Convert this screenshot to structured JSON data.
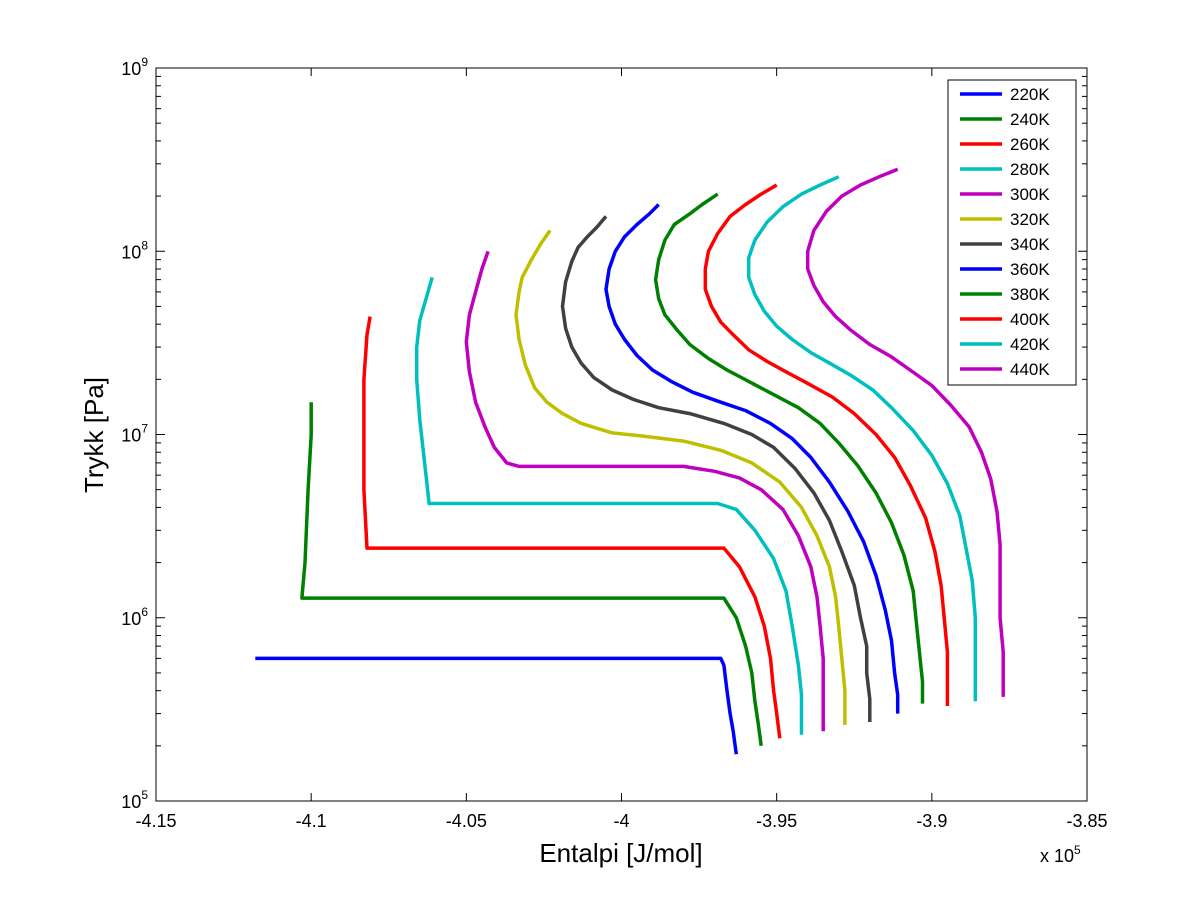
{
  "chart_data": {
    "type": "line",
    "xlabel": "Entalpi [J/mol]",
    "ylabel": "Trykk [Pa]",
    "x_multiplier_label": "x 10",
    "x_multiplier_exp": "5",
    "y_scale": "log",
    "xlim": [
      -4.15,
      -3.85
    ],
    "ylim": [
      100000,
      1000000000
    ],
    "x_ticks": [
      "-4.15",
      "-4.1",
      "-4.05",
      "-4",
      "-3.95",
      "-3.9",
      "-3.85"
    ],
    "y_ticks": [
      {
        "base": "10",
        "exp": "5"
      },
      {
        "base": "10",
        "exp": "6"
      },
      {
        "base": "10",
        "exp": "7"
      },
      {
        "base": "10",
        "exp": "8"
      },
      {
        "base": "10",
        "exp": "9"
      }
    ],
    "grid": false,
    "legend_position": "top-right",
    "series": [
      {
        "name": "220K",
        "color": "#0000ff",
        "points": [
          [
            -4.118,
            600000
          ],
          [
            -3.968,
            600000
          ],
          [
            -3.967,
            550000
          ],
          [
            -3.966,
            400000
          ],
          [
            -3.965,
            300000
          ],
          [
            -3.964,
            240000
          ],
          [
            -3.963,
            180000
          ]
        ]
      },
      {
        "name": "240K",
        "color": "#008000",
        "points": [
          [
            -4.1,
            15000000
          ],
          [
            -4.1,
            10000000
          ],
          [
            -4.101,
            5000000
          ],
          [
            -4.102,
            2000000
          ],
          [
            -4.103,
            1280000
          ],
          [
            -3.967,
            1280000
          ],
          [
            -3.963,
            1000000
          ],
          [
            -3.96,
            700000
          ],
          [
            -3.958,
            500000
          ],
          [
            -3.957,
            350000
          ],
          [
            -3.956,
            270000
          ],
          [
            -3.955,
            200000
          ]
        ]
      },
      {
        "name": "260K",
        "color": "#ff0000",
        "points": [
          [
            -4.081,
            44000000
          ],
          [
            -4.082,
            35000000
          ],
          [
            -4.083,
            20000000
          ],
          [
            -4.083,
            10000000
          ],
          [
            -4.083,
            5000000
          ],
          [
            -4.082,
            2400000
          ],
          [
            -3.967,
            2400000
          ],
          [
            -3.962,
            1900000
          ],
          [
            -3.957,
            1300000
          ],
          [
            -3.954,
            900000
          ],
          [
            -3.952,
            600000
          ],
          [
            -3.951,
            400000
          ],
          [
            -3.95,
            300000
          ],
          [
            -3.949,
            220000
          ]
        ]
      },
      {
        "name": "280K",
        "color": "#00bfbf",
        "points": [
          [
            -4.061,
            72000000
          ],
          [
            -4.063,
            55000000
          ],
          [
            -4.065,
            42000000
          ],
          [
            -4.066,
            30000000
          ],
          [
            -4.066,
            20000000
          ],
          [
            -4.065,
            12000000
          ],
          [
            -4.063,
            6000000
          ],
          [
            -4.062,
            4200000
          ],
          [
            -3.969,
            4200000
          ],
          [
            -3.963,
            3900000
          ],
          [
            -3.957,
            3000000
          ],
          [
            -3.951,
            2100000
          ],
          [
            -3.947,
            1400000
          ],
          [
            -3.945,
            900000
          ],
          [
            -3.943,
            550000
          ],
          [
            -3.942,
            380000
          ],
          [
            -3.942,
            300000
          ],
          [
            -3.942,
            230000
          ]
        ]
      },
      {
        "name": "300K",
        "color": "#bf00bf",
        "points": [
          [
            -4.043,
            100000000
          ],
          [
            -4.045,
            80000000
          ],
          [
            -4.047,
            60000000
          ],
          [
            -4.049,
            45000000
          ],
          [
            -4.05,
            32000000
          ],
          [
            -4.049,
            22000000
          ],
          [
            -4.047,
            15000000
          ],
          [
            -4.044,
            11000000
          ],
          [
            -4.041,
            8500000
          ],
          [
            -4.037,
            7000000
          ],
          [
            -4.033,
            6700000
          ],
          [
            -3.98,
            6700000
          ],
          [
            -3.97,
            6300000
          ],
          [
            -3.962,
            5800000
          ],
          [
            -3.955,
            5000000
          ],
          [
            -3.948,
            3900000
          ],
          [
            -3.943,
            2800000
          ],
          [
            -3.939,
            1900000
          ],
          [
            -3.937,
            1300000
          ],
          [
            -3.936,
            900000
          ],
          [
            -3.935,
            600000
          ],
          [
            -3.935,
            400000
          ],
          [
            -3.935,
            300000
          ],
          [
            -3.935,
            240000
          ]
        ]
      },
      {
        "name": "320K",
        "color": "#bfbf00",
        "points": [
          [
            -4.023,
            130000000
          ],
          [
            -4.026,
            110000000
          ],
          [
            -4.029,
            90000000
          ],
          [
            -4.032,
            72000000
          ],
          [
            -4.033,
            60000000
          ],
          [
            -4.034,
            45000000
          ],
          [
            -4.033,
            33000000
          ],
          [
            -4.031,
            24000000
          ],
          [
            -4.028,
            18000000
          ],
          [
            -4.024,
            15000000
          ],
          [
            -4.019,
            13000000
          ],
          [
            -4.013,
            11500000
          ],
          [
            -4.003,
            10200000
          ],
          [
            -3.993,
            9800000
          ],
          [
            -3.98,
            9200000
          ],
          [
            -3.968,
            8200000
          ],
          [
            -3.958,
            7000000
          ],
          [
            -3.949,
            5500000
          ],
          [
            -3.942,
            4000000
          ],
          [
            -3.937,
            2800000
          ],
          [
            -3.933,
            1900000
          ],
          [
            -3.931,
            1300000
          ],
          [
            -3.93,
            900000
          ],
          [
            -3.929,
            600000
          ],
          [
            -3.928,
            400000
          ],
          [
            -3.928,
            320000
          ],
          [
            -3.928,
            260000
          ]
        ]
      },
      {
        "name": "340K",
        "color": "#404040",
        "points": [
          [
            -4.005,
            155000000
          ],
          [
            -4.008,
            135000000
          ],
          [
            -4.011,
            120000000
          ],
          [
            -4.014,
            105000000
          ],
          [
            -4.016,
            88000000
          ],
          [
            -4.018,
            68000000
          ],
          [
            -4.019,
            50000000
          ],
          [
            -4.018,
            38000000
          ],
          [
            -4.016,
            30000000
          ],
          [
            -4.013,
            24500000
          ],
          [
            -4.009,
            20500000
          ],
          [
            -4.003,
            17500000
          ],
          [
            -3.996,
            15500000
          ],
          [
            -3.988,
            14000000
          ],
          [
            -3.978,
            13000000
          ],
          [
            -3.967,
            11500000
          ],
          [
            -3.958,
            10000000
          ],
          [
            -3.951,
            8500000
          ],
          [
            -3.944,
            6500000
          ],
          [
            -3.938,
            4800000
          ],
          [
            -3.933,
            3400000
          ],
          [
            -3.929,
            2300000
          ],
          [
            -3.925,
            1500000
          ],
          [
            -3.923,
            1000000
          ],
          [
            -3.921,
            700000
          ],
          [
            -3.921,
            500000
          ],
          [
            -3.92,
            360000
          ],
          [
            -3.92,
            270000
          ]
        ]
      },
      {
        "name": "360K",
        "color": "#0000ff",
        "points": [
          [
            -3.988,
            180000000
          ],
          [
            -3.991,
            160000000
          ],
          [
            -3.995,
            140000000
          ],
          [
            -3.999,
            120000000
          ],
          [
            -4.002,
            100000000
          ],
          [
            -4.004,
            80000000
          ],
          [
            -4.005,
            62000000
          ],
          [
            -4.004,
            50000000
          ],
          [
            -4.002,
            40000000
          ],
          [
            -3.999,
            33000000
          ],
          [
            -3.995,
            27000000
          ],
          [
            -3.99,
            22500000
          ],
          [
            -3.984,
            19500000
          ],
          [
            -3.977,
            17000000
          ],
          [
            -3.968,
            15000000
          ],
          [
            -3.96,
            13500000
          ],
          [
            -3.952,
            11500000
          ],
          [
            -3.945,
            9500000
          ],
          [
            -3.939,
            7500000
          ],
          [
            -3.933,
            5500000
          ],
          [
            -3.927,
            3800000
          ],
          [
            -3.922,
            2600000
          ],
          [
            -3.918,
            1700000
          ],
          [
            -3.915,
            1100000
          ],
          [
            -3.913,
            750000
          ],
          [
            -3.912,
            500000
          ],
          [
            -3.911,
            380000
          ],
          [
            -3.911,
            300000
          ]
        ]
      },
      {
        "name": "380K",
        "color": "#008000",
        "points": [
          [
            -3.969,
            205000000
          ],
          [
            -3.974,
            180000000
          ],
          [
            -3.978,
            160000000
          ],
          [
            -3.983,
            140000000
          ],
          [
            -3.986,
            115000000
          ],
          [
            -3.988,
            90000000
          ],
          [
            -3.989,
            70000000
          ],
          [
            -3.988,
            55000000
          ],
          [
            -3.986,
            45000000
          ],
          [
            -3.982,
            37000000
          ],
          [
            -3.978,
            31000000
          ],
          [
            -3.972,
            26000000
          ],
          [
            -3.966,
            22500000
          ],
          [
            -3.959,
            19500000
          ],
          [
            -3.951,
            16500000
          ],
          [
            -3.943,
            14000000
          ],
          [
            -3.936,
            11500000
          ],
          [
            -3.93,
            9000000
          ],
          [
            -3.924,
            6800000
          ],
          [
            -3.918,
            4800000
          ],
          [
            -3.913,
            3300000
          ],
          [
            -3.909,
            2200000
          ],
          [
            -3.906,
            1400000
          ],
          [
            -3.905,
            950000
          ],
          [
            -3.904,
            650000
          ],
          [
            -3.903,
            450000
          ],
          [
            -3.903,
            340000
          ]
        ]
      },
      {
        "name": "400K",
        "color": "#ff0000",
        "points": [
          [
            -3.95,
            230000000
          ],
          [
            -3.955,
            205000000
          ],
          [
            -3.96,
            180000000
          ],
          [
            -3.965,
            155000000
          ],
          [
            -3.969,
            125000000
          ],
          [
            -3.972,
            100000000
          ],
          [
            -3.973,
            80000000
          ],
          [
            -3.973,
            62000000
          ],
          [
            -3.971,
            50000000
          ],
          [
            -3.968,
            41000000
          ],
          [
            -3.964,
            35000000
          ],
          [
            -3.959,
            29000000
          ],
          [
            -3.953,
            25000000
          ],
          [
            -3.947,
            22000000
          ],
          [
            -3.94,
            19000000
          ],
          [
            -3.932,
            16000000
          ],
          [
            -3.925,
            13000000
          ],
          [
            -3.918,
            10000000
          ],
          [
            -3.912,
            7500000
          ],
          [
            -3.907,
            5300000
          ],
          [
            -3.902,
            3500000
          ],
          [
            -3.899,
            2300000
          ],
          [
            -3.897,
            1500000
          ],
          [
            -3.896,
            1000000
          ],
          [
            -3.895,
            650000
          ],
          [
            -3.895,
            450000
          ],
          [
            -3.895,
            330000
          ]
        ]
      },
      {
        "name": "420K",
        "color": "#00bfbf",
        "points": [
          [
            -3.93,
            255000000
          ],
          [
            -3.936,
            230000000
          ],
          [
            -3.942,
            205000000
          ],
          [
            -3.948,
            175000000
          ],
          [
            -3.953,
            145000000
          ],
          [
            -3.957,
            115000000
          ],
          [
            -3.959,
            92000000
          ],
          [
            -3.959,
            72000000
          ],
          [
            -3.957,
            58000000
          ],
          [
            -3.954,
            47000000
          ],
          [
            -3.95,
            39000000
          ],
          [
            -3.945,
            33000000
          ],
          [
            -3.939,
            28000000
          ],
          [
            -3.932,
            24000000
          ],
          [
            -3.926,
            21000000
          ],
          [
            -3.919,
            17500000
          ],
          [
            -3.913,
            14000000
          ],
          [
            -3.906,
            10500000
          ],
          [
            -3.9,
            7700000
          ],
          [
            -3.895,
            5400000
          ],
          [
            -3.891,
            3600000
          ],
          [
            -3.889,
            2400000
          ],
          [
            -3.887,
            1600000
          ],
          [
            -3.886,
            1000000
          ],
          [
            -3.886,
            650000
          ],
          [
            -3.886,
            450000
          ],
          [
            -3.886,
            350000
          ]
        ]
      },
      {
        "name": "440K",
        "color": "#bf00bf",
        "points": [
          [
            -3.911,
            280000000
          ],
          [
            -3.917,
            255000000
          ],
          [
            -3.923,
            230000000
          ],
          [
            -3.929,
            200000000
          ],
          [
            -3.934,
            165000000
          ],
          [
            -3.938,
            130000000
          ],
          [
            -3.94,
            100000000
          ],
          [
            -3.94,
            80000000
          ],
          [
            -3.938,
            65000000
          ],
          [
            -3.935,
            53000000
          ],
          [
            -3.931,
            44000000
          ],
          [
            -3.926,
            37000000
          ],
          [
            -3.92,
            31000000
          ],
          [
            -3.913,
            26500000
          ],
          [
            -3.907,
            22500000
          ],
          [
            -3.9,
            18500000
          ],
          [
            -3.894,
            14500000
          ],
          [
            -3.888,
            11000000
          ],
          [
            -3.884,
            8000000
          ],
          [
            -3.881,
            5700000
          ],
          [
            -3.879,
            3800000
          ],
          [
            -3.878,
            2500000
          ],
          [
            -3.878,
            1600000
          ],
          [
            -3.878,
            1000000
          ],
          [
            -3.877,
            650000
          ],
          [
            -3.877,
            450000
          ],
          [
            -3.877,
            370000
          ]
        ]
      }
    ]
  }
}
